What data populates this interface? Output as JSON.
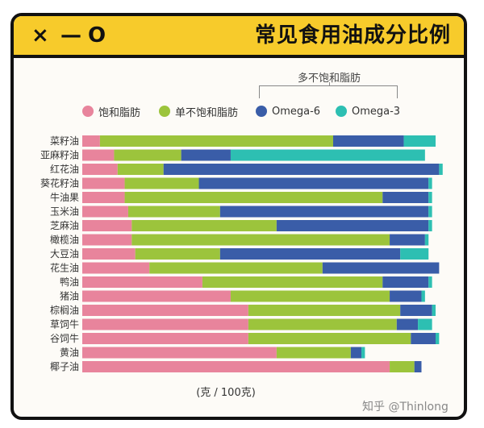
{
  "window_controls": {
    "close": "×",
    "minimize": "—",
    "maximize": "O"
  },
  "title": "常见食用油成分比例",
  "colors": {
    "frame": "#111111",
    "titlebar": "#f7cb2b",
    "saturated": "#e8849c",
    "mono": "#9cc43c",
    "omega6": "#3a5da8",
    "omega3": "#2dbfb2"
  },
  "chart_data": {
    "type": "bar",
    "orientation": "horizontal",
    "stacked": true,
    "title": "常见食用油成分比例",
    "xlabel": "(克 / 100克)",
    "ylabel": "",
    "xlim": [
      0,
      100
    ],
    "legend_group_label": "多不饱和脂肪",
    "legend_placement": "top",
    "grid": false,
    "categories": [
      "菜籽油",
      "亚麻籽油",
      "红花油",
      "葵花籽油",
      "牛油果",
      "玉米油",
      "芝麻油",
      "橄榄油",
      "大豆油",
      "花生油",
      "鸭油",
      "猪油",
      "棕榈油",
      "草饲牛",
      "谷饲牛",
      "黄油",
      "椰子油"
    ],
    "series": [
      {
        "name": "饱和脂肪",
        "color": "#e8849c",
        "values": [
          5,
          9,
          10,
          12,
          12,
          13,
          14,
          14,
          15,
          19,
          34,
          42,
          47,
          47,
          47,
          55,
          87
        ]
      },
      {
        "name": "单不饱和脂肪",
        "color": "#9cc43c",
        "values": [
          66,
          19,
          13,
          21,
          73,
          26,
          41,
          73,
          24,
          49,
          51,
          45,
          43,
          42,
          46,
          21,
          7
        ]
      },
      {
        "name": "Omega-6",
        "color": "#3a5da8",
        "values": [
          20,
          14,
          78,
          65,
          13,
          59,
          43,
          10,
          51,
          33,
          13,
          9,
          9,
          6,
          7,
          3,
          2
        ]
      },
      {
        "name": "Omega-3",
        "color": "#2dbfb2",
        "values": [
          9,
          55,
          1,
          1,
          1,
          1,
          1,
          1,
          8,
          0,
          1,
          1,
          1,
          4,
          1,
          1,
          0
        ]
      }
    ]
  },
  "credit": "知乎 @Thinlong"
}
